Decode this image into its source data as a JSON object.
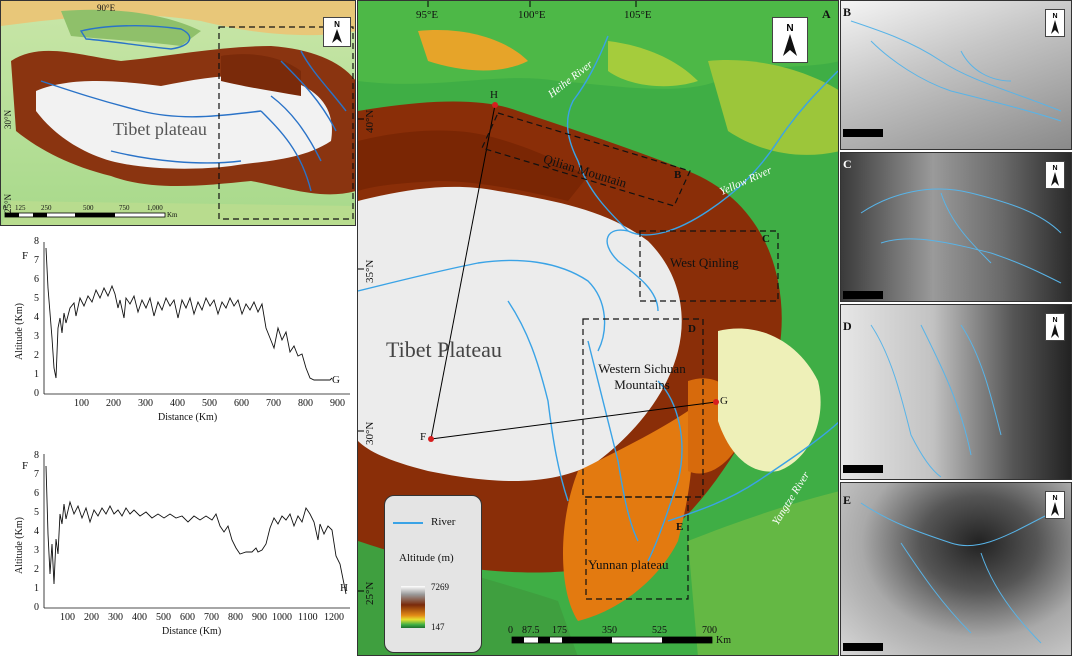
{
  "overview": {
    "lat_labels": [
      "30°N",
      "25°N"
    ],
    "lon_labels": [
      "90°E"
    ],
    "region_label": "Tibet plateau",
    "scale_ticks": [
      "0",
      "125",
      "250",
      "500",
      "750",
      "1,000"
    ],
    "scale_unit": "Km"
  },
  "profile_fg": {
    "start_label": "F",
    "end_label": "G",
    "ylabel": "Altitude (Km)",
    "xlabel": "Distance (Km)",
    "yticks": [
      "0",
      "1",
      "2",
      "3",
      "4",
      "5",
      "6",
      "7",
      "8"
    ],
    "xticks": [
      "100",
      "200",
      "300",
      "400",
      "500",
      "600",
      "700",
      "800",
      "900"
    ]
  },
  "profile_fh": {
    "start_label": "F",
    "end_label": "H",
    "ylabel": "Altitude (Km)",
    "xlabel": "Distance (Km)",
    "yticks": [
      "0",
      "1",
      "2",
      "3",
      "4",
      "5",
      "6",
      "7",
      "8"
    ],
    "xticks": [
      "100",
      "200",
      "300",
      "400",
      "500",
      "600",
      "700",
      "800",
      "900",
      "1000",
      "1100",
      "1200"
    ]
  },
  "main_map": {
    "panel_letter": "A",
    "lon_labels": [
      "95°E",
      "100°E",
      "105°E"
    ],
    "lat_labels": [
      "40°N",
      "35°N",
      "30°N",
      "25°N"
    ],
    "plateau_label": "Tibet Plateau",
    "regions": [
      {
        "name": "Qilian Mountain",
        "letter": "B"
      },
      {
        "name": "West Qinling",
        "letter": "C"
      },
      {
        "name": "Western Sichuan Mountains",
        "letter": "D"
      },
      {
        "name": "Yunnan plateau",
        "letter": "E"
      }
    ],
    "rivers": [
      "Heihe River",
      "Yellow River",
      "Yangtze River"
    ],
    "points": [
      "H",
      "G",
      "F"
    ],
    "scale_ticks": [
      "0",
      "87.5",
      "175",
      "350",
      "525",
      "700"
    ],
    "scale_unit": "Km",
    "legend": {
      "river_label": "River",
      "altitude_title": "Altitude (m)",
      "alt_max": "7269",
      "alt_min": "147"
    }
  },
  "insets": [
    "B",
    "C",
    "D",
    "E"
  ],
  "north_label": "N"
}
